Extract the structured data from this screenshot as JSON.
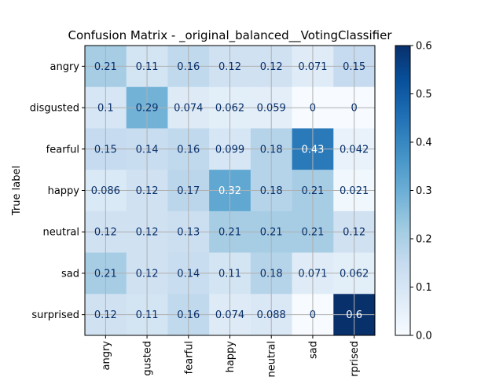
{
  "chart_data": {
    "type": "heatmap",
    "title": "Confusion Matrix - _original_balanced__VotingClassifier",
    "ylabel": "True label",
    "xlabel": "",
    "row_labels": [
      "angry",
      "disgusted",
      "fearful",
      "happy",
      "neutral",
      "sad",
      "surprised"
    ],
    "col_labels": [
      "angry",
      "disgusted",
      "fearful",
      "happy",
      "neutral",
      "sad",
      "surprised"
    ],
    "col_labels_visible": [
      "angry",
      "gusted",
      "fearful",
      "happy",
      "neutral",
      "sad",
      "rprised"
    ],
    "values": [
      [
        0.21,
        0.11,
        0.16,
        0.12,
        0.12,
        0.071,
        0.15
      ],
      [
        0.1,
        0.29,
        0.074,
        0.062,
        0.059,
        0,
        0
      ],
      [
        0.15,
        0.14,
        0.16,
        0.099,
        0.18,
        0.43,
        0.042
      ],
      [
        0.086,
        0.12,
        0.17,
        0.32,
        0.18,
        0.21,
        0.021
      ],
      [
        0.12,
        0.12,
        0.13,
        0.21,
        0.21,
        0.21,
        0.12
      ],
      [
        0.21,
        0.12,
        0.14,
        0.11,
        0.18,
        0.071,
        0.062
      ],
      [
        0.12,
        0.11,
        0.16,
        0.074,
        0.088,
        0,
        0.6
      ]
    ],
    "value_labels": [
      [
        "0.21",
        "0.11",
        "0.16",
        "0.12",
        "0.12",
        "0.071",
        "0.15"
      ],
      [
        "0.1",
        "0.29",
        "0.074",
        "0.062",
        "0.059",
        "0",
        "0"
      ],
      [
        "0.15",
        "0.14",
        "0.16",
        "0.099",
        "0.18",
        "0.43",
        "0.042"
      ],
      [
        "0.086",
        "0.12",
        "0.17",
        "0.32",
        "0.18",
        "0.21",
        "0.021"
      ],
      [
        "0.12",
        "0.12",
        "0.13",
        "0.21",
        "0.21",
        "0.21",
        "0.12"
      ],
      [
        "0.21",
        "0.12",
        "0.14",
        "0.11",
        "0.18",
        "0.071",
        "0.062"
      ],
      [
        "0.12",
        "0.11",
        "0.16",
        "0.074",
        "0.088",
        "0",
        "0.6"
      ]
    ],
    "colormap": "Blues",
    "color_range": [
      0,
      0.6
    ],
    "colorbar_ticks": [
      "0.0",
      "0.1",
      "0.2",
      "0.3",
      "0.4",
      "0.5",
      "0.6"
    ],
    "grid": true,
    "colorbar": "right"
  }
}
